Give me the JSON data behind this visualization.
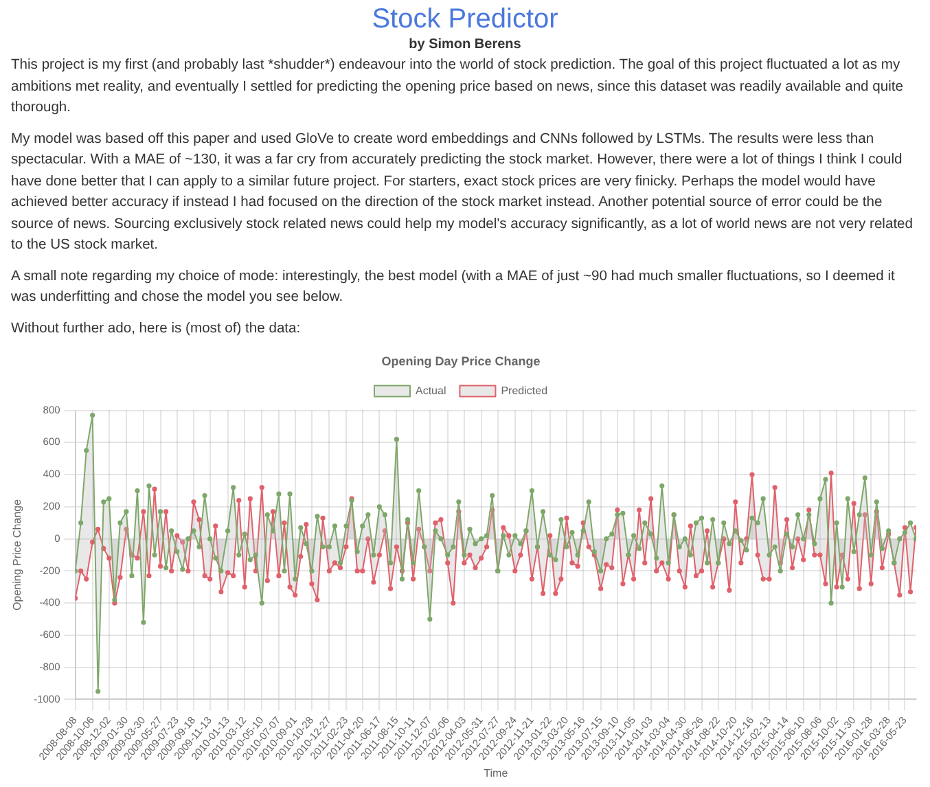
{
  "chart_data": {
    "type": "area",
    "title": "Opening Day Price Change",
    "xlabel": "Time",
    "ylabel": "Opening Price Change",
    "annotations": [
      "Stock Predictor",
      "by Simon Berens",
      "This project is my first (and probably last *shudder*) endeavour into the world of stock prediction. The goal of this project fluctuated a lot as my ambitions met reality, and eventually I settled for predicting the opening price based on news, since this dataset was readily available and quite thorough.",
      "My model was based off this paper and used GloVe to create word embeddings and CNNs followed by LSTMs. The results were less than spectacular. With a MAE of ~130, it was a far cry from accurately predicting the stock market. However, there were a lot of things I think I could have done better that I can apply to a similar future project. For starters, exact stock prices are very finicky. Perhaps the model would have achieved better accuracy if instead I had focused on the direction of the stock market instead. Another potential source of error could be the source of news. Sourcing exclusively stock related news could help my model's accuracy significantly, as a lot of world news are not very related to the US stock market.",
      "A small note regarding my choice of mode: interestingly, the best model (with a MAE of just ~90 had much smaller fluctuations, so I deemed it was underfitting and chose the model you see below.",
      "Without further ado, here is (most of) the data:"
    ],
    "x": [
      "2008-08-08",
      "2008-08-27",
      "2008-09-15",
      "2008-10-06",
      "2008-10-25",
      "2008-11-13",
      "2008-12-02",
      "2008-12-21",
      "2009-01-09",
      "2009-01-30",
      "2009-02-18",
      "2009-03-09",
      "2009-03-30",
      "2009-04-18",
      "2009-05-07",
      "2009-05-27",
      "2009-06-15",
      "2009-07-04",
      "2009-07-23",
      "2009-08-11",
      "2009-08-30",
      "2009-09-18",
      "2009-10-07",
      "2009-10-26",
      "2009-11-13",
      "2009-12-02",
      "2009-12-21",
      "2010-01-13",
      "2010-02-01",
      "2010-02-20",
      "2010-03-12",
      "2010-03-31",
      "2010-04-19",
      "2010-05-10",
      "2010-05-29",
      "2010-06-17",
      "2010-07-07",
      "2010-07-26",
      "2010-08-14",
      "2010-09-01",
      "2010-09-20",
      "2010-10-09",
      "2010-10-28",
      "2010-11-16",
      "2010-12-05",
      "2010-12-27",
      "2011-01-15",
      "2011-02-03",
      "2011-02-23",
      "2011-03-14",
      "2011-04-02",
      "2011-04-20",
      "2011-05-09",
      "2011-05-28",
      "2011-06-17",
      "2011-07-06",
      "2011-07-25",
      "2011-08-15",
      "2011-09-03",
      "2011-09-22",
      "2011-10-11",
      "2011-10-30",
      "2011-11-18",
      "2011-12-07",
      "2011-12-26",
      "2012-01-14",
      "2012-02-06",
      "2012-02-25",
      "2012-03-15",
      "2012-04-03",
      "2012-04-22",
      "2012-05-11",
      "2012-05-31",
      "2012-06-19",
      "2012-07-08",
      "2012-07-27",
      "2012-08-15",
      "2012-09-03",
      "2012-09-24",
      "2012-10-13",
      "2012-11-01",
      "2012-11-21",
      "2012-12-10",
      "2012-12-29",
      "2013-01-22",
      "2013-02-10",
      "2013-03-01",
      "2013-03-20",
      "2013-04-08",
      "2013-04-27",
      "2013-05-16",
      "2013-06-04",
      "2013-06-23",
      "2013-07-15",
      "2013-08-03",
      "2013-08-22",
      "2013-09-10",
      "2013-09-29",
      "2013-10-18",
      "2013-11-05",
      "2013-11-24",
      "2013-12-13",
      "2014-01-03",
      "2014-01-22",
      "2014-02-10",
      "2014-03-04",
      "2014-03-23",
      "2014-04-11",
      "2014-04-30",
      "2014-05-19",
      "2014-06-07",
      "2014-06-26",
      "2014-07-15",
      "2014-08-03",
      "2014-08-22",
      "2014-09-10",
      "2014-09-29",
      "2014-10-20",
      "2014-11-08",
      "2014-11-27",
      "2014-12-16",
      "2015-01-04",
      "2015-01-23",
      "2015-02-13",
      "2015-03-04",
      "2015-03-23",
      "2015-04-14",
      "2015-05-03",
      "2015-05-22",
      "2015-06-10",
      "2015-06-29",
      "2015-07-18",
      "2015-08-06",
      "2015-08-25",
      "2015-09-13",
      "2015-10-02",
      "2015-10-21",
      "2015-11-09",
      "2015-11-30",
      "2015-12-19",
      "2016-01-07",
      "2016-01-28",
      "2016-02-16",
      "2016-03-06",
      "2016-03-28",
      "2016-04-16",
      "2016-05-05",
      "2016-05-23",
      "2016-06-11",
      "2016-06-30"
    ],
    "series": [
      {
        "name": "Actual",
        "color": "#7ea86a",
        "values": [
          -200,
          100,
          550,
          770,
          -950,
          230,
          250,
          -380,
          100,
          170,
          -230,
          300,
          -520,
          330,
          -100,
          170,
          -180,
          50,
          -80,
          -190,
          0,
          50,
          -50,
          270,
          0,
          -120,
          -200,
          50,
          320,
          -100,
          30,
          -130,
          -100,
          -400,
          150,
          50,
          280,
          -200,
          280,
          -250,
          70,
          -30,
          -200,
          140,
          -50,
          -50,
          80,
          -150,
          80,
          240,
          -80,
          80,
          150,
          -100,
          200,
          150,
          -150,
          620,
          -250,
          120,
          -150,
          300,
          -50,
          -500,
          50,
          0,
          -100,
          -50,
          230,
          -100,
          60,
          -30,
          0,
          20,
          270,
          -200,
          20,
          -100,
          20,
          -30,
          50,
          300,
          -50,
          170,
          -100,
          -130,
          120,
          -50,
          40,
          -100,
          50,
          230,
          -80,
          -200,
          0,
          30,
          150,
          160,
          -100,
          20,
          -60,
          100,
          30,
          -120,
          330,
          -150,
          150,
          -50,
          0,
          -100,
          100,
          130,
          -150,
          120,
          -150,
          100,
          -30,
          50,
          -10,
          -70,
          130,
          100,
          250,
          -100,
          -50,
          -200,
          30,
          -50,
          150,
          0,
          150,
          -30,
          250,
          370,
          -400,
          100,
          -300,
          250,
          -80,
          150,
          380,
          -100,
          230,
          -60,
          50,
          -150,
          0,
          40,
          100,
          0
        ]
      },
      {
        "name": "Predicted",
        "color": "#e0616b",
        "values": [
          -370,
          -200,
          -250,
          -20,
          60,
          -60,
          -120,
          -400,
          -240,
          60,
          -100,
          -120,
          170,
          -230,
          310,
          -170,
          170,
          -200,
          20,
          -20,
          -200,
          230,
          120,
          -230,
          -250,
          80,
          -330,
          -210,
          -230,
          240,
          -300,
          250,
          -200,
          320,
          -260,
          170,
          -230,
          100,
          -300,
          -350,
          -110,
          90,
          -280,
          -380,
          130,
          -200,
          -150,
          -180,
          -50,
          250,
          -200,
          -200,
          0,
          -270,
          -100,
          50,
          -310,
          -50,
          -200,
          100,
          -250,
          60,
          -50,
          -200,
          100,
          120,
          -150,
          -400,
          170,
          -150,
          -100,
          -180,
          -120,
          -50,
          180,
          -200,
          70,
          20,
          -200,
          -100,
          50,
          -250,
          -50,
          -340,
          20,
          -340,
          -250,
          130,
          -150,
          -170,
          100,
          -50,
          -100,
          -310,
          -160,
          -180,
          180,
          -280,
          -100,
          -250,
          180,
          -150,
          250,
          -200,
          -150,
          -250,
          150,
          -200,
          -300,
          80,
          -230,
          -200,
          50,
          -300,
          -150,
          0,
          -320,
          230,
          -150,
          0,
          400,
          -100,
          -250,
          -250,
          320,
          -150,
          120,
          -180,
          0,
          -130,
          180,
          -100,
          -100,
          -280,
          410,
          -300,
          -100,
          -250,
          220,
          -310,
          150,
          -280,
          170,
          -180,
          30,
          -150,
          -350,
          70,
          -330,
          70
        ]
      }
    ],
    "xlim": [
      "2008-08-08",
      "2016-07-01"
    ],
    "xticks": [
      "2008-08-08",
      "2008-10-06",
      "2008-12-02",
      "2009-01-30",
      "2009-03-30",
      "2009-05-27",
      "2009-07-23",
      "2009-09-18",
      "2009-11-13",
      "2010-01-13",
      "2010-03-12",
      "2010-05-10",
      "2010-07-07",
      "2010-09-01",
      "2010-10-28",
      "2010-12-27",
      "2011-02-23",
      "2011-04-20",
      "2011-06-17",
      "2011-08-15",
      "2011-10-11",
      "2011-12-07",
      "2012-02-06",
      "2012-04-03",
      "2012-05-31",
      "2012-07-27",
      "2012-09-24",
      "2012-11-21",
      "2013-01-22",
      "2013-03-20",
      "2013-05-16",
      "2013-07-15",
      "2013-09-10",
      "2013-11-05",
      "2014-01-03",
      "2014-03-04",
      "2014-04-30",
      "2014-06-26",
      "2014-08-22",
      "2014-10-20",
      "2014-12-16",
      "2015-02-13",
      "2015-04-14",
      "2015-06-10",
      "2015-08-06",
      "2015-10-02",
      "2015-11-30",
      "2016-01-28",
      "2016-03-28",
      "2016-05-23"
    ],
    "ylim": [
      -1000,
      800
    ],
    "yticks": [
      -1000,
      -800,
      -600,
      -400,
      -200,
      0,
      200,
      400,
      600,
      800
    ],
    "grid": true,
    "legend": "top",
    "marker": "circle"
  }
}
